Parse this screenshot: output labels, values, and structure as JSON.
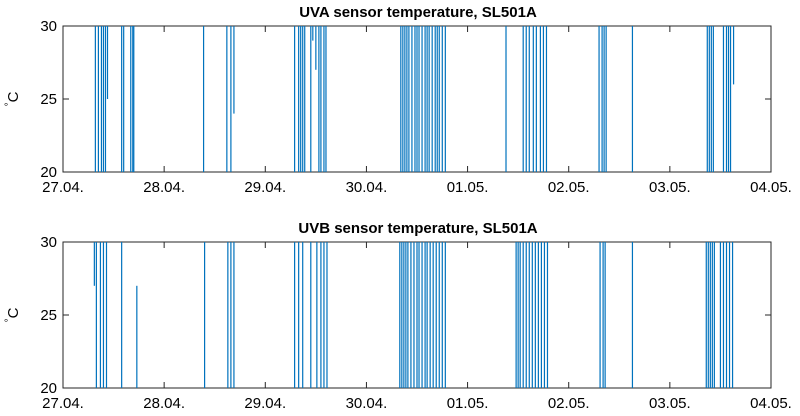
{
  "chart_data": [
    {
      "type": "line",
      "title": "UVA sensor temperature, SL501A",
      "ylabel": "°C",
      "ylabel_deg": "°",
      "ylabel_unit": "C",
      "xlim": [
        "27.04.",
        "04.05."
      ],
      "ylim": [
        20,
        30
      ],
      "xticks": [
        "27.04.",
        "28.04.",
        "29.04.",
        "30.04.",
        "01.05.",
        "02.05.",
        "03.05.",
        "04.05."
      ],
      "yticks": [
        "20",
        "25",
        "30"
      ],
      "grid": false,
      "color": "#0072BD",
      "spikes": [
        {
          "x": 0.32,
          "y0": 20,
          "y1": 30
        },
        {
          "x": 0.35,
          "y0": 20,
          "y1": 30
        },
        {
          "x": 0.38,
          "y0": 20,
          "y1": 30
        },
        {
          "x": 0.4,
          "y0": 20,
          "y1": 30
        },
        {
          "x": 0.42,
          "y0": 20,
          "y1": 30
        },
        {
          "x": 0.44,
          "y0": 25,
          "y1": 30
        },
        {
          "x": 0.58,
          "y0": 20,
          "y1": 30
        },
        {
          "x": 0.6,
          "y0": 20,
          "y1": 30
        },
        {
          "x": 0.67,
          "y0": 20,
          "y1": 30
        },
        {
          "x": 0.69,
          "y0": 20,
          "y1": 30
        },
        {
          "x": 0.7,
          "y0": 20,
          "y1": 30
        },
        {
          "x": 1.39,
          "y0": 20,
          "y1": 30
        },
        {
          "x": 1.62,
          "y0": 20,
          "y1": 30
        },
        {
          "x": 1.66,
          "y0": 20,
          "y1": 30
        },
        {
          "x": 1.69,
          "y0": 24,
          "y1": 30
        },
        {
          "x": 2.29,
          "y0": 20,
          "y1": 30
        },
        {
          "x": 2.33,
          "y0": 20,
          "y1": 30
        },
        {
          "x": 2.35,
          "y0": 20,
          "y1": 30
        },
        {
          "x": 2.37,
          "y0": 20,
          "y1": 30
        },
        {
          "x": 2.39,
          "y0": 20,
          "y1": 30
        },
        {
          "x": 2.45,
          "y0": 20,
          "y1": 30
        },
        {
          "x": 2.47,
          "y0": 29,
          "y1": 30
        },
        {
          "x": 2.5,
          "y0": 27,
          "y1": 30
        },
        {
          "x": 2.53,
          "y0": 20,
          "y1": 30
        },
        {
          "x": 2.55,
          "y0": 20,
          "y1": 30
        },
        {
          "x": 2.58,
          "y0": 20,
          "y1": 30
        },
        {
          "x": 2.6,
          "y0": 20,
          "y1": 30
        },
        {
          "x": 3.34,
          "y0": 20,
          "y1": 30
        },
        {
          "x": 3.36,
          "y0": 20,
          "y1": 30
        },
        {
          "x": 3.38,
          "y0": 20,
          "y1": 30
        },
        {
          "x": 3.4,
          "y0": 20,
          "y1": 30
        },
        {
          "x": 3.42,
          "y0": 20,
          "y1": 30
        },
        {
          "x": 3.45,
          "y0": 20,
          "y1": 30
        },
        {
          "x": 3.48,
          "y0": 20,
          "y1": 30
        },
        {
          "x": 3.5,
          "y0": 20,
          "y1": 30
        },
        {
          "x": 3.52,
          "y0": 20,
          "y1": 30
        },
        {
          "x": 3.55,
          "y0": 20,
          "y1": 30
        },
        {
          "x": 3.58,
          "y0": 20,
          "y1": 30
        },
        {
          "x": 3.6,
          "y0": 20,
          "y1": 30
        },
        {
          "x": 3.62,
          "y0": 20,
          "y1": 30
        },
        {
          "x": 3.65,
          "y0": 20,
          "y1": 30
        },
        {
          "x": 3.68,
          "y0": 20,
          "y1": 30
        },
        {
          "x": 3.7,
          "y0": 20,
          "y1": 30
        },
        {
          "x": 3.72,
          "y0": 20,
          "y1": 30
        },
        {
          "x": 3.75,
          "y0": 20,
          "y1": 30
        },
        {
          "x": 3.78,
          "y0": 20,
          "y1": 30
        },
        {
          "x": 4.38,
          "y0": 20,
          "y1": 30
        },
        {
          "x": 4.55,
          "y0": 20,
          "y1": 30
        },
        {
          "x": 4.58,
          "y0": 20,
          "y1": 30
        },
        {
          "x": 4.61,
          "y0": 20,
          "y1": 30
        },
        {
          "x": 4.65,
          "y0": 20,
          "y1": 30
        },
        {
          "x": 4.68,
          "y0": 20,
          "y1": 30
        },
        {
          "x": 4.72,
          "y0": 20,
          "y1": 30
        },
        {
          "x": 4.75,
          "y0": 20,
          "y1": 30
        },
        {
          "x": 4.78,
          "y0": 20,
          "y1": 30
        },
        {
          "x": 5.3,
          "y0": 20,
          "y1": 30
        },
        {
          "x": 5.33,
          "y0": 20,
          "y1": 30
        },
        {
          "x": 5.35,
          "y0": 20,
          "y1": 30
        },
        {
          "x": 5.37,
          "y0": 20,
          "y1": 30
        },
        {
          "x": 5.63,
          "y0": 20,
          "y1": 30
        },
        {
          "x": 6.37,
          "y0": 20,
          "y1": 30
        },
        {
          "x": 6.39,
          "y0": 20,
          "y1": 30
        },
        {
          "x": 6.41,
          "y0": 20,
          "y1": 30
        },
        {
          "x": 6.43,
          "y0": 20,
          "y1": 30
        },
        {
          "x": 6.53,
          "y0": 20,
          "y1": 30
        },
        {
          "x": 6.56,
          "y0": 20,
          "y1": 30
        },
        {
          "x": 6.58,
          "y0": 20,
          "y1": 30
        },
        {
          "x": 6.6,
          "y0": 20,
          "y1": 30
        },
        {
          "x": 6.63,
          "y0": 26,
          "y1": 30
        }
      ]
    },
    {
      "type": "line",
      "title": "UVB sensor temperature, SL501A",
      "ylabel": "°C",
      "ylabel_deg": "°",
      "ylabel_unit": "C",
      "xlim": [
        "27.04.",
        "04.05."
      ],
      "ylim": [
        20,
        30
      ],
      "xticks": [
        "27.04.",
        "28.04.",
        "29.04.",
        "30.04.",
        "01.05.",
        "02.05.",
        "03.05.",
        "04.05."
      ],
      "yticks": [
        "20",
        "25",
        "30"
      ],
      "grid": false,
      "color": "#0072BD",
      "spikes": [
        {
          "x": 0.31,
          "y0": 27,
          "y1": 30
        },
        {
          "x": 0.33,
          "y0": 20,
          "y1": 30
        },
        {
          "x": 0.37,
          "y0": 20,
          "y1": 30
        },
        {
          "x": 0.4,
          "y0": 20,
          "y1": 30
        },
        {
          "x": 0.43,
          "y0": 20,
          "y1": 30
        },
        {
          "x": 0.58,
          "y0": 20,
          "y1": 30
        },
        {
          "x": 0.73,
          "y0": 20,
          "y1": 27
        },
        {
          "x": 1.4,
          "y0": 20,
          "y1": 30
        },
        {
          "x": 1.63,
          "y0": 20,
          "y1": 30
        },
        {
          "x": 1.66,
          "y0": 20,
          "y1": 30
        },
        {
          "x": 1.69,
          "y0": 20,
          "y1": 30
        },
        {
          "x": 2.29,
          "y0": 20,
          "y1": 30
        },
        {
          "x": 2.33,
          "y0": 20,
          "y1": 30
        },
        {
          "x": 2.37,
          "y0": 20,
          "y1": 30
        },
        {
          "x": 2.45,
          "y0": 20,
          "y1": 30
        },
        {
          "x": 2.51,
          "y0": 20,
          "y1": 30
        },
        {
          "x": 2.55,
          "y0": 20,
          "y1": 30
        },
        {
          "x": 2.58,
          "y0": 20,
          "y1": 30
        },
        {
          "x": 2.61,
          "y0": 20,
          "y1": 30
        },
        {
          "x": 3.33,
          "y0": 20,
          "y1": 30
        },
        {
          "x": 3.35,
          "y0": 20,
          "y1": 30
        },
        {
          "x": 3.37,
          "y0": 20,
          "y1": 30
        },
        {
          "x": 3.39,
          "y0": 20,
          "y1": 30
        },
        {
          "x": 3.41,
          "y0": 20,
          "y1": 30
        },
        {
          "x": 3.44,
          "y0": 20,
          "y1": 30
        },
        {
          "x": 3.47,
          "y0": 20,
          "y1": 30
        },
        {
          "x": 3.5,
          "y0": 20,
          "y1": 30
        },
        {
          "x": 3.52,
          "y0": 20,
          "y1": 30
        },
        {
          "x": 3.55,
          "y0": 20,
          "y1": 30
        },
        {
          "x": 3.58,
          "y0": 20,
          "y1": 30
        },
        {
          "x": 3.6,
          "y0": 20,
          "y1": 30
        },
        {
          "x": 3.63,
          "y0": 20,
          "y1": 30
        },
        {
          "x": 3.66,
          "y0": 20,
          "y1": 30
        },
        {
          "x": 3.69,
          "y0": 20,
          "y1": 30
        },
        {
          "x": 3.72,
          "y0": 20,
          "y1": 30
        },
        {
          "x": 3.75,
          "y0": 20,
          "y1": 30
        },
        {
          "x": 3.78,
          "y0": 20,
          "y1": 30
        },
        {
          "x": 4.48,
          "y0": 20,
          "y1": 30
        },
        {
          "x": 4.5,
          "y0": 20,
          "y1": 30
        },
        {
          "x": 4.52,
          "y0": 20,
          "y1": 30
        },
        {
          "x": 4.55,
          "y0": 20,
          "y1": 30
        },
        {
          "x": 4.58,
          "y0": 20,
          "y1": 30
        },
        {
          "x": 4.61,
          "y0": 20,
          "y1": 30
        },
        {
          "x": 4.64,
          "y0": 20,
          "y1": 30
        },
        {
          "x": 4.67,
          "y0": 20,
          "y1": 30
        },
        {
          "x": 4.7,
          "y0": 20,
          "y1": 30
        },
        {
          "x": 4.73,
          "y0": 20,
          "y1": 30
        },
        {
          "x": 4.76,
          "y0": 20,
          "y1": 30
        },
        {
          "x": 4.79,
          "y0": 20,
          "y1": 30
        },
        {
          "x": 5.31,
          "y0": 20,
          "y1": 30
        },
        {
          "x": 5.34,
          "y0": 20,
          "y1": 30
        },
        {
          "x": 5.36,
          "y0": 20,
          "y1": 30
        },
        {
          "x": 5.63,
          "y0": 20,
          "y1": 30
        },
        {
          "x": 6.36,
          "y0": 20,
          "y1": 30
        },
        {
          "x": 6.38,
          "y0": 20,
          "y1": 30
        },
        {
          "x": 6.4,
          "y0": 20,
          "y1": 30
        },
        {
          "x": 6.42,
          "y0": 20,
          "y1": 30
        },
        {
          "x": 6.44,
          "y0": 20,
          "y1": 30
        },
        {
          "x": 6.5,
          "y0": 20,
          "y1": 30
        },
        {
          "x": 6.53,
          "y0": 20,
          "y1": 30
        },
        {
          "x": 6.56,
          "y0": 20,
          "y1": 30
        },
        {
          "x": 6.59,
          "y0": 20,
          "y1": 30
        },
        {
          "x": 6.62,
          "y0": 20,
          "y1": 30
        }
      ]
    }
  ]
}
